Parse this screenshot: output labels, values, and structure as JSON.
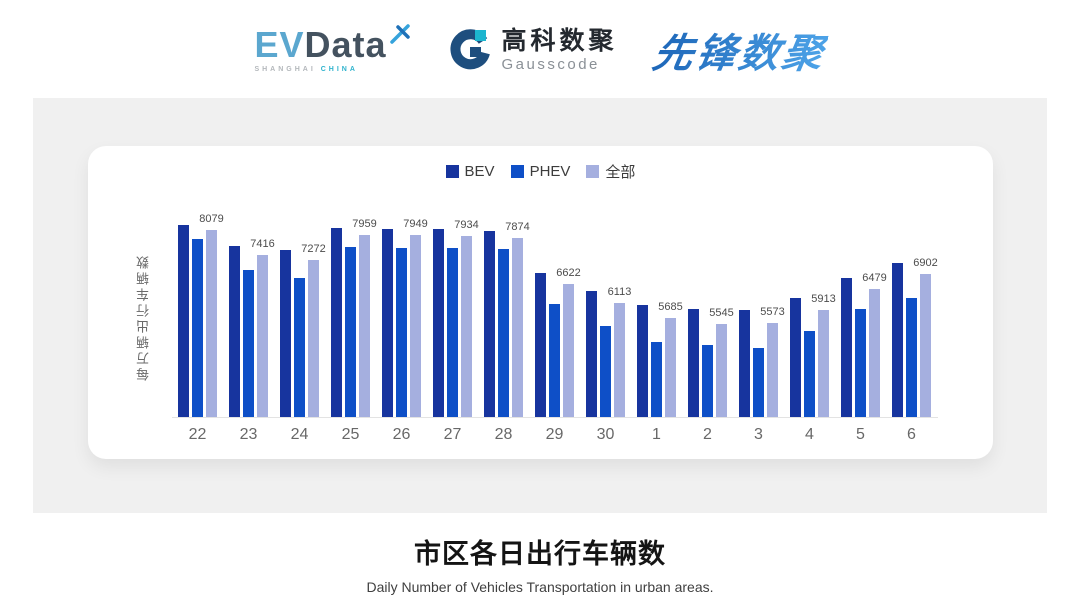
{
  "header": {
    "evdata_logo": {
      "ev": "EV",
      "data": "Data",
      "sub_left": "SHANGHAI",
      "sub_right": "CHINA"
    },
    "gausscode_logo": {
      "cn": "高科数聚",
      "en": "Gausscode"
    },
    "xianfeng_logo": {
      "text": "先锋数聚"
    }
  },
  "chart_data": {
    "type": "bar",
    "title": "市区各日出行车辆数",
    "subtitle": "Daily Number of Vehicles Transportation in urban areas.",
    "ylabel": "每万辆出行车辆数",
    "xlabel": "",
    "categories": [
      "22",
      "23",
      "24",
      "25",
      "26",
      "27",
      "28",
      "29",
      "30",
      "1",
      "2",
      "3",
      "4",
      "5",
      "6"
    ],
    "series": [
      {
        "name": "BEV",
        "color": "#17349E",
        "values": [
          8240,
          7660,
          7540,
          8150,
          8110,
          8120,
          8060,
          6920,
          6440,
          6040,
          5930,
          5900,
          6240,
          6780,
          7200
        ]
      },
      {
        "name": "PHEV",
        "color": "#0E4FC7",
        "values": [
          7860,
          7010,
          6780,
          7630,
          7600,
          7610,
          7580,
          6080,
          5490,
          5030,
          4950,
          4890,
          5340,
          5940,
          6250
        ]
      },
      {
        "name": "全部",
        "color": "#A5AFDF",
        "values": [
          8079,
          7416,
          7272,
          7959,
          7949,
          7934,
          7874,
          6622,
          6113,
          5685,
          5545,
          5573,
          5913,
          6479,
          6902
        ]
      }
    ],
    "value_labels_series": "全部",
    "ylim": [
      3000,
      8500
    ],
    "grid": false,
    "legend_position": "top"
  },
  "colors": {
    "panel_bg": "#f0f0f0",
    "card_bg": "#ffffff",
    "axis_line": "#e3e3e3",
    "gauss_dark": "#1e4e7e",
    "gauss_teal": "#1cb5cf",
    "evdata_blue": "#5ba7cf",
    "evdata_slate": "#44525f",
    "xianfeng_blue": "#2e7fd0"
  }
}
